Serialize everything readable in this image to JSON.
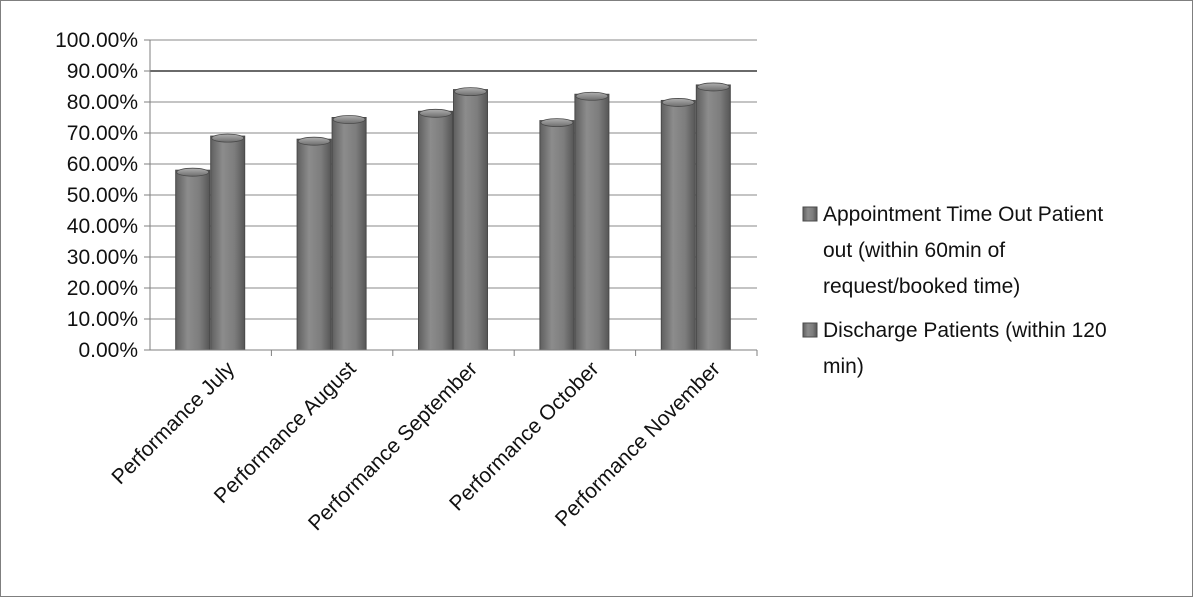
{
  "chart_data": {
    "type": "bar",
    "title": "",
    "xlabel": "",
    "ylabel": "",
    "ylim": [
      0,
      1.0
    ],
    "y_ticks": [
      "0.00%",
      "10.00%",
      "20.00%",
      "30.00%",
      "40.00%",
      "50.00%",
      "60.00%",
      "70.00%",
      "80.00%",
      "90.00%",
      "100.00%"
    ],
    "categories": [
      "Performance July",
      "Performance August",
      "Performance September",
      "Performance October",
      "Performance November"
    ],
    "series": [
      {
        "name": "Appointment Time Out Patient out (within 60min of request/booked time)",
        "legend_lines": [
          "Appointment Time Out Patient",
          "out (within 60min of",
          "request/booked time)"
        ],
        "values": [
          0.58,
          0.68,
          0.77,
          0.74,
          0.805
        ],
        "color": "#808080"
      },
      {
        "name": "Discharge Patients  (within 120 min)",
        "legend_lines": [
          "Discharge Patients  (within 120",
          "min)"
        ],
        "values": [
          0.69,
          0.75,
          0.84,
          0.825,
          0.855
        ],
        "color": "#7a7a7a"
      }
    ],
    "grid": true,
    "legend_position": "right"
  }
}
